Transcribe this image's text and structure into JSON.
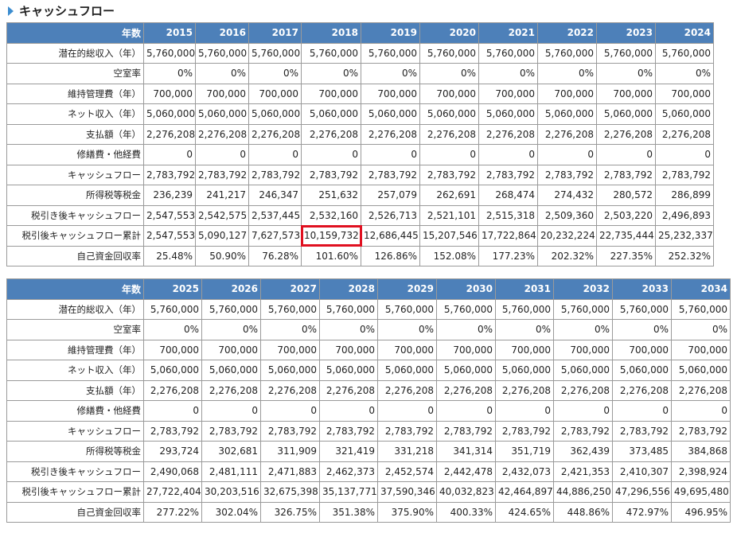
{
  "title": "キャッシュフロー",
  "tables": [
    {
      "columns": [
        "年数",
        "2015",
        "2016",
        "2017",
        "2018",
        "2019",
        "2020",
        "2021",
        "2022",
        "2023",
        "2024"
      ],
      "rows": [
        [
          "潜在的総収入（年）",
          "5,760,000",
          "5,760,000",
          "5,760,000",
          "5,760,000",
          "5,760,000",
          "5,760,000",
          "5,760,000",
          "5,760,000",
          "5,760,000",
          "5,760,000"
        ],
        [
          "空室率",
          "0%",
          "0%",
          "0%",
          "0%",
          "0%",
          "0%",
          "0%",
          "0%",
          "0%",
          "0%"
        ],
        [
          "維持管理費（年）",
          "700,000",
          "700,000",
          "700,000",
          "700,000",
          "700,000",
          "700,000",
          "700,000",
          "700,000",
          "700,000",
          "700,000"
        ],
        [
          "ネット収入（年）",
          "5,060,000",
          "5,060,000",
          "5,060,000",
          "5,060,000",
          "5,060,000",
          "5,060,000",
          "5,060,000",
          "5,060,000",
          "5,060,000",
          "5,060,000"
        ],
        [
          "支払額（年）",
          "2,276,208",
          "2,276,208",
          "2,276,208",
          "2,276,208",
          "2,276,208",
          "2,276,208",
          "2,276,208",
          "2,276,208",
          "2,276,208",
          "2,276,208"
        ],
        [
          "修繕費・他経費",
          "0",
          "0",
          "0",
          "0",
          "0",
          "0",
          "0",
          "0",
          "0",
          "0"
        ],
        [
          "キャッシュフロー",
          "2,783,792",
          "2,783,792",
          "2,783,792",
          "2,783,792",
          "2,783,792",
          "2,783,792",
          "2,783,792",
          "2,783,792",
          "2,783,792",
          "2,783,792"
        ],
        [
          "所得税等税金",
          "236,239",
          "241,217",
          "246,347",
          "251,632",
          "257,079",
          "262,691",
          "268,474",
          "274,432",
          "280,572",
          "286,899"
        ],
        [
          "税引き後キャッシュフロー",
          "2,547,553",
          "2,542,575",
          "2,537,445",
          "2,532,160",
          "2,526,713",
          "2,521,101",
          "2,515,318",
          "2,509,360",
          "2,503,220",
          "2,496,893"
        ],
        [
          "税引後キャッシュフロー累計",
          "2,547,553",
          "5,090,127",
          "7,627,573",
          "10,159,732",
          "12,686,445",
          "15,207,546",
          "17,722,864",
          "20,232,224",
          "22,735,444",
          "25,232,337"
        ],
        [
          "自己資金回収率",
          "25.48%",
          "50.90%",
          "76.28%",
          "101.60%",
          "126.86%",
          "152.08%",
          "177.23%",
          "202.32%",
          "227.35%",
          "252.32%"
        ]
      ]
    },
    {
      "columns": [
        "年数",
        "2025",
        "2026",
        "2027",
        "2028",
        "2029",
        "2030",
        "2031",
        "2032",
        "2033",
        "2034"
      ],
      "rows": [
        [
          "潜在的総収入（年）",
          "5,760,000",
          "5,760,000",
          "5,760,000",
          "5,760,000",
          "5,760,000",
          "5,760,000",
          "5,760,000",
          "5,760,000",
          "5,760,000",
          "5,760,000"
        ],
        [
          "空室率",
          "0%",
          "0%",
          "0%",
          "0%",
          "0%",
          "0%",
          "0%",
          "0%",
          "0%",
          "0%"
        ],
        [
          "維持管理費（年）",
          "700,000",
          "700,000",
          "700,000",
          "700,000",
          "700,000",
          "700,000",
          "700,000",
          "700,000",
          "700,000",
          "700,000"
        ],
        [
          "ネット収入（年）",
          "5,060,000",
          "5,060,000",
          "5,060,000",
          "5,060,000",
          "5,060,000",
          "5,060,000",
          "5,060,000",
          "5,060,000",
          "5,060,000",
          "5,060,000"
        ],
        [
          "支払額（年）",
          "2,276,208",
          "2,276,208",
          "2,276,208",
          "2,276,208",
          "2,276,208",
          "2,276,208",
          "2,276,208",
          "2,276,208",
          "2,276,208",
          "2,276,208"
        ],
        [
          "修繕費・他経費",
          "0",
          "0",
          "0",
          "0",
          "0",
          "0",
          "0",
          "0",
          "0",
          "0"
        ],
        [
          "キャッシュフロー",
          "2,783,792",
          "2,783,792",
          "2,783,792",
          "2,783,792",
          "2,783,792",
          "2,783,792",
          "2,783,792",
          "2,783,792",
          "2,783,792",
          "2,783,792"
        ],
        [
          "所得税等税金",
          "293,724",
          "302,681",
          "311,909",
          "321,419",
          "331,218",
          "341,314",
          "351,719",
          "362,439",
          "373,485",
          "384,868"
        ],
        [
          "税引き後キャッシュフロー",
          "2,490,068",
          "2,481,111",
          "2,471,883",
          "2,462,373",
          "2,452,574",
          "2,442,478",
          "2,432,073",
          "2,421,353",
          "2,410,307",
          "2,398,924"
        ],
        [
          "税引後キャッシュフロー累計",
          "27,722,404",
          "30,203,516",
          "32,675,398",
          "35,137,771",
          "37,590,346",
          "40,032,823",
          "42,464,897",
          "44,886,250",
          "47,296,556",
          "49,695,480"
        ],
        [
          "自己資金回収率",
          "277.22%",
          "302.04%",
          "326.75%",
          "351.38%",
          "375.90%",
          "400.33%",
          "424.65%",
          "448.86%",
          "472.97%",
          "496.95%"
        ]
      ]
    }
  ]
}
